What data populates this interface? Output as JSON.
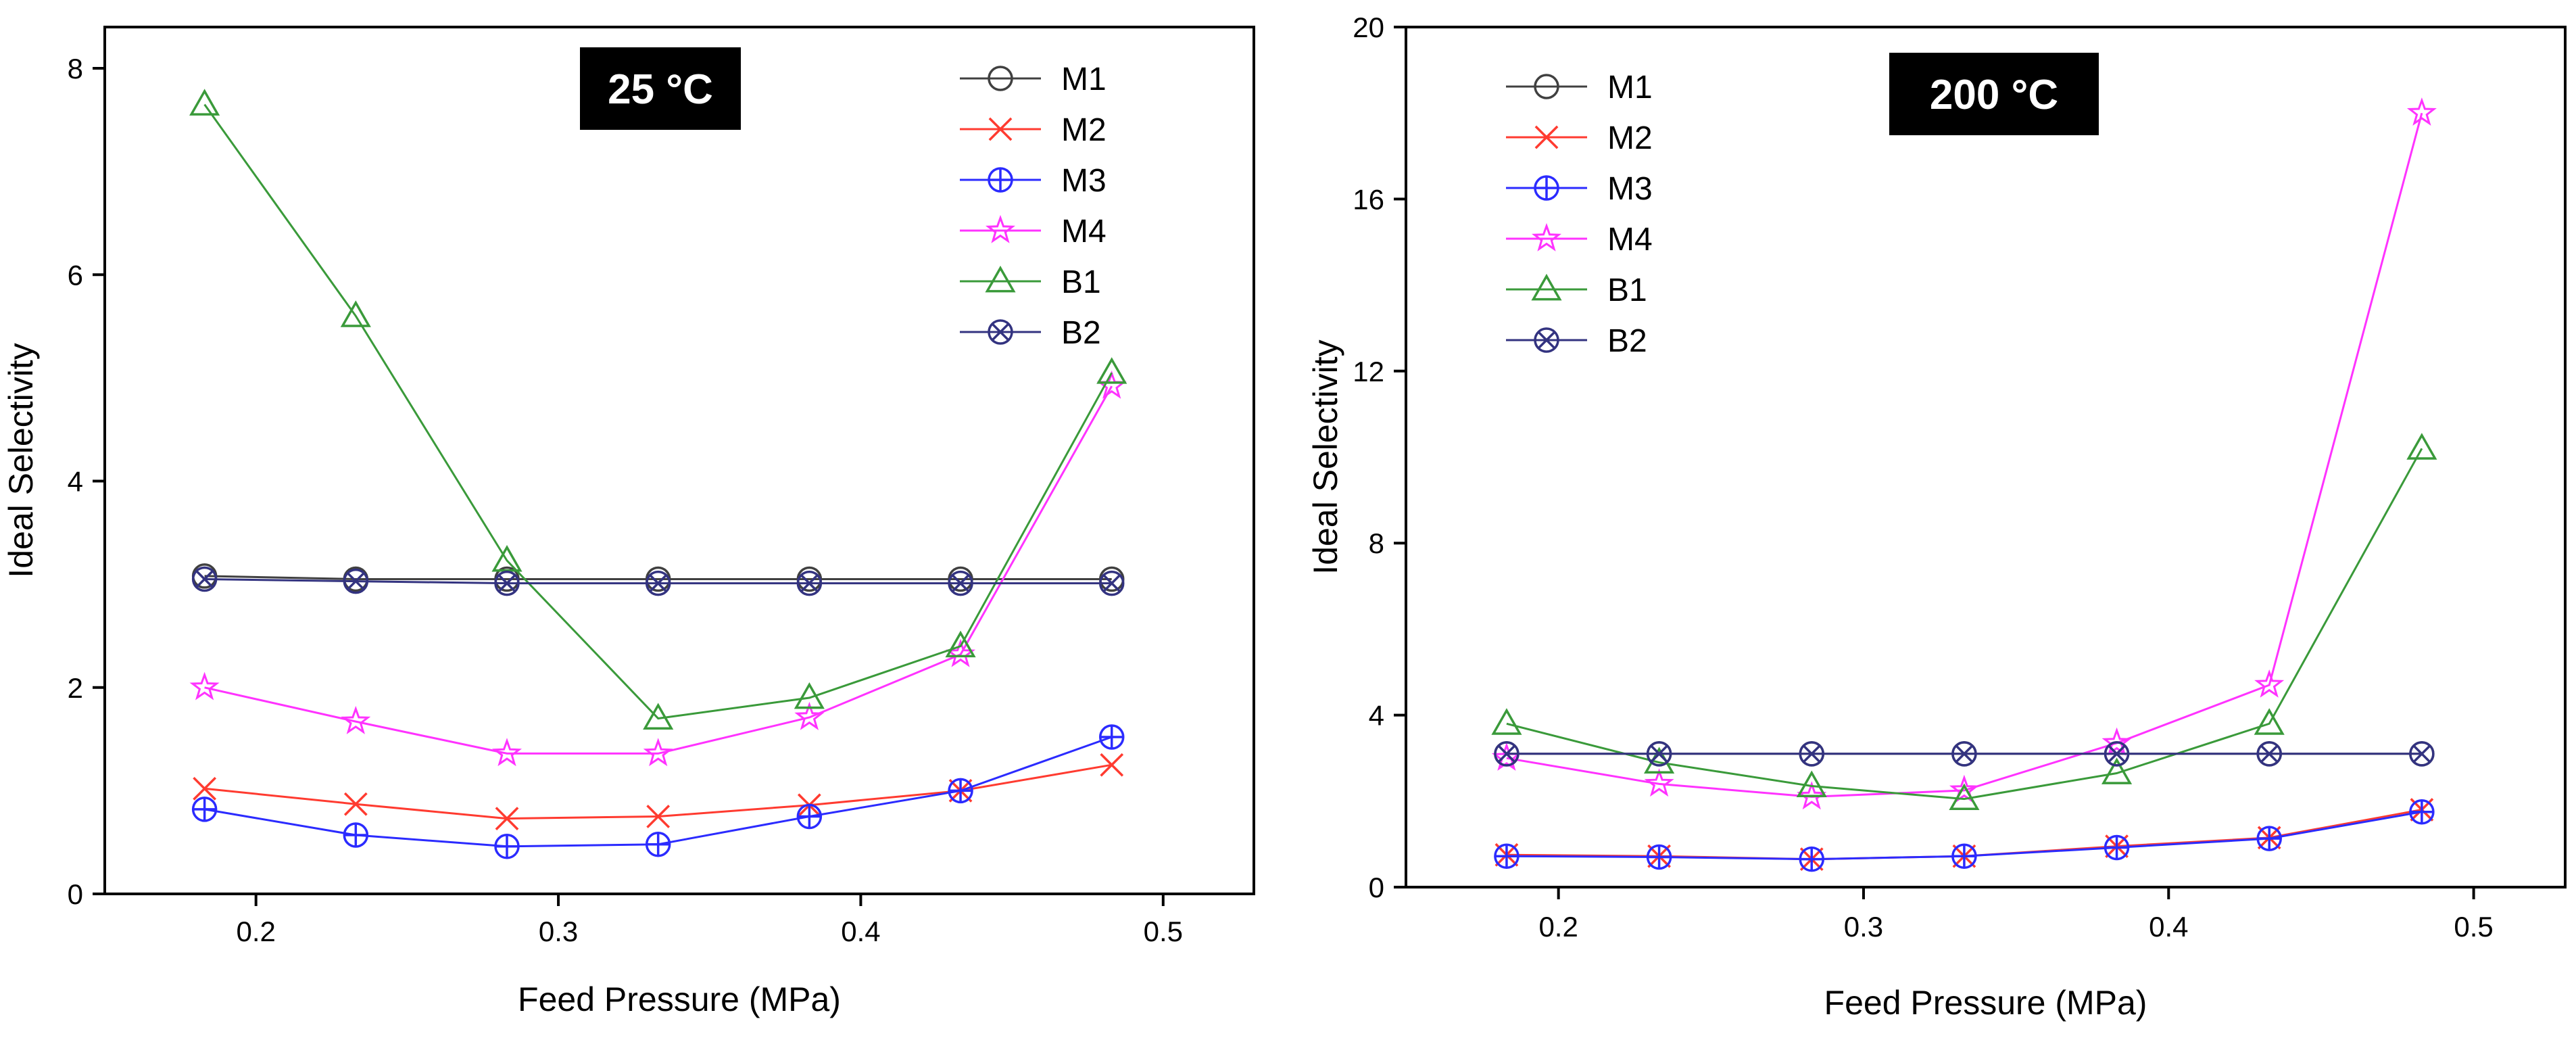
{
  "chart_data": [
    {
      "type": "line",
      "title": "25 °C",
      "xlabel": "Feed Pressure (MPa)",
      "ylabel": "Ideal Selectivity",
      "xlim": [
        0.15,
        0.53
      ],
      "ylim": [
        0,
        8.4
      ],
      "xticks": [
        0.2,
        0.3,
        0.4,
        0.5
      ],
      "yticks": [
        0,
        2,
        4,
        6,
        8
      ],
      "xtick_labels": [
        "0.2",
        "0.3",
        "0.4",
        "0.5"
      ],
      "ytick_labels": [
        "0",
        "2",
        "4",
        "6",
        "8"
      ],
      "legend_position": "top-right",
      "x": [
        0.183,
        0.233,
        0.283,
        0.333,
        0.383,
        0.433,
        0.483
      ],
      "series": [
        {
          "name": "M1",
          "color": "#404040",
          "marker": "circle",
          "values": [
            3.08,
            3.05,
            3.05,
            3.05,
            3.05,
            3.05,
            3.05
          ]
        },
        {
          "name": "M2",
          "color": "#ff3b30",
          "marker": "x",
          "values": [
            1.02,
            0.87,
            0.73,
            0.75,
            0.86,
            1.0,
            1.25
          ]
        },
        {
          "name": "M3",
          "color": "#2b2bff",
          "marker": "circle-plus",
          "values": [
            0.82,
            0.57,
            0.46,
            0.48,
            0.75,
            1.0,
            1.52
          ]
        },
        {
          "name": "M4",
          "color": "#ff33ff",
          "marker": "star",
          "values": [
            2.0,
            1.67,
            1.36,
            1.36,
            1.71,
            2.32,
            4.92
          ]
        },
        {
          "name": "B1",
          "color": "#3a9a3a",
          "marker": "triangle",
          "values": [
            7.65,
            5.6,
            3.23,
            1.7,
            1.9,
            2.4,
            5.05
          ]
        },
        {
          "name": "B2",
          "color": "#333380",
          "marker": "circle-x",
          "values": [
            3.05,
            3.03,
            3.01,
            3.01,
            3.01,
            3.01,
            3.01
          ]
        }
      ]
    },
    {
      "type": "line",
      "title": "200 °C",
      "xlabel": "Feed Pressure (MPa)",
      "ylabel": "Ideal Selectivity",
      "xlim": [
        0.15,
        0.53
      ],
      "ylim": [
        0,
        20
      ],
      "xticks": [
        0.2,
        0.3,
        0.4,
        0.5
      ],
      "yticks": [
        0,
        4,
        8,
        12,
        16,
        20
      ],
      "xtick_labels": [
        "0.2",
        "0.3",
        "0.4",
        "0.5"
      ],
      "ytick_labels": [
        "0",
        "4",
        "8",
        "12",
        "16",
        "20"
      ],
      "legend_position": "top-left",
      "x": [
        0.183,
        0.233,
        0.283,
        0.333,
        0.383,
        0.433,
        0.483
      ],
      "series": [
        {
          "name": "M1",
          "color": "#404040",
          "marker": "circle",
          "values": [
            3.1,
            3.1,
            3.1,
            3.1,
            3.1,
            3.1,
            3.1
          ]
        },
        {
          "name": "M2",
          "color": "#ff3b30",
          "marker": "x",
          "values": [
            0.75,
            0.72,
            0.65,
            0.72,
            0.95,
            1.15,
            1.8
          ]
        },
        {
          "name": "M3",
          "color": "#2b2bff",
          "marker": "circle-plus",
          "values": [
            0.72,
            0.7,
            0.65,
            0.72,
            0.92,
            1.13,
            1.75
          ]
        },
        {
          "name": "M4",
          "color": "#ff33ff",
          "marker": "star",
          "values": [
            3.0,
            2.4,
            2.1,
            2.25,
            3.35,
            4.7,
            18.0
          ]
        },
        {
          "name": "B1",
          "color": "#3a9a3a",
          "marker": "triangle",
          "values": [
            3.8,
            2.9,
            2.35,
            2.05,
            2.65,
            3.8,
            10.2
          ]
        },
        {
          "name": "B2",
          "color": "#333380",
          "marker": "circle-x",
          "values": [
            3.1,
            3.1,
            3.1,
            3.1,
            3.1,
            3.1,
            3.1
          ]
        }
      ]
    }
  ]
}
